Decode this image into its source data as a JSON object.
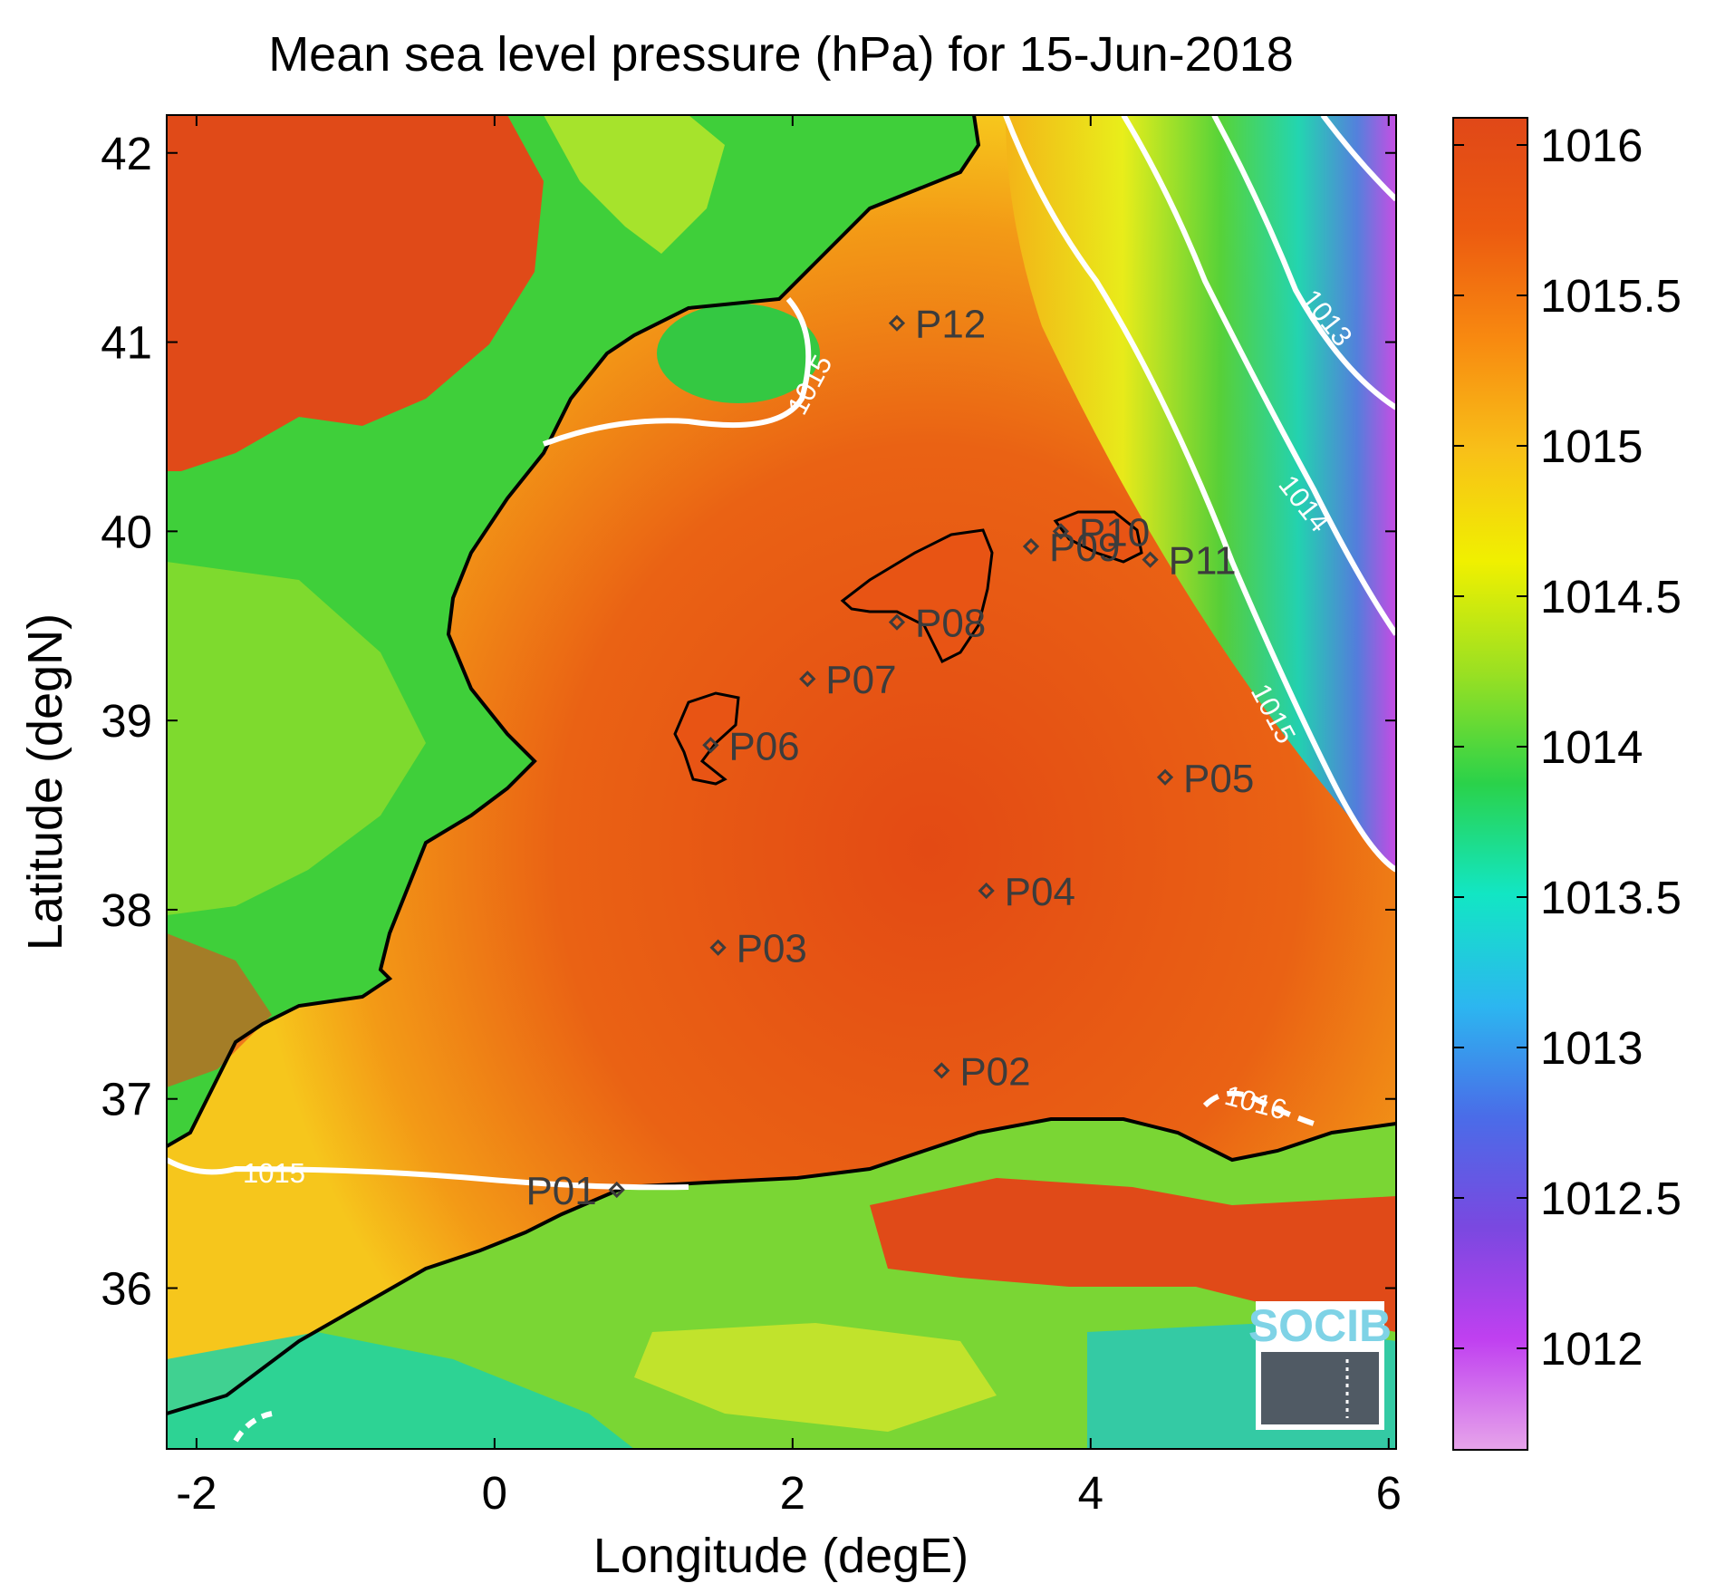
{
  "title": "Mean sea level pressure (hPa) for 15-Jun-2018",
  "xlabel": "Longitude (degE)",
  "ylabel": "Latitude (degN)",
  "x_ticks": [
    "-2",
    "0",
    "2",
    "4",
    "6"
  ],
  "y_ticks": [
    "42",
    "41",
    "40",
    "39",
    "38",
    "37",
    "36"
  ],
  "colorbar": {
    "ticks": [
      "1016",
      "1015.5",
      "1015",
      "1014.5",
      "1014",
      "1013.5",
      "1013",
      "1012.5",
      "1012"
    ],
    "colors": [
      "#e6a4ea",
      "#c040f0",
      "#7a48e0",
      "#4a6ce8",
      "#2cb6f0",
      "#12e6c4",
      "#2ad24a",
      "#9ae022",
      "#f0f000",
      "#f8c018",
      "#f88a10",
      "#ec5a10",
      "#e04818"
    ]
  },
  "stations": [
    {
      "label": "P01",
      "lon": 0.82,
      "lat": 36.52
    },
    {
      "label": "P02",
      "lon": 3.0,
      "lat": 37.15
    },
    {
      "label": "P03",
      "lon": 1.5,
      "lat": 37.8
    },
    {
      "label": "P04",
      "lon": 3.3,
      "lat": 38.1
    },
    {
      "label": "P05",
      "lon": 4.5,
      "lat": 38.7
    },
    {
      "label": "P06",
      "lon": 1.45,
      "lat": 38.87
    },
    {
      "label": "P07",
      "lon": 2.1,
      "lat": 39.22
    },
    {
      "label": "P08",
      "lon": 2.7,
      "lat": 39.52
    },
    {
      "label": "P09",
      "lon": 3.6,
      "lat": 39.92
    },
    {
      "label": "P10",
      "lon": 3.8,
      "lat": 40.0
    },
    {
      "label": "P11",
      "lon": 4.4,
      "lat": 39.85
    },
    {
      "label": "P12",
      "lon": 2.7,
      "lat": 41.1
    }
  ],
  "contour_labels": [
    "1015",
    "1015",
    "1015",
    "1016",
    "1014",
    "1013"
  ],
  "logo": "SOCIB",
  "colors": {
    "land_low": "#27c94f",
    "sea_high": "#e55316",
    "contour": "#ffffff",
    "coast": "#000000"
  }
}
